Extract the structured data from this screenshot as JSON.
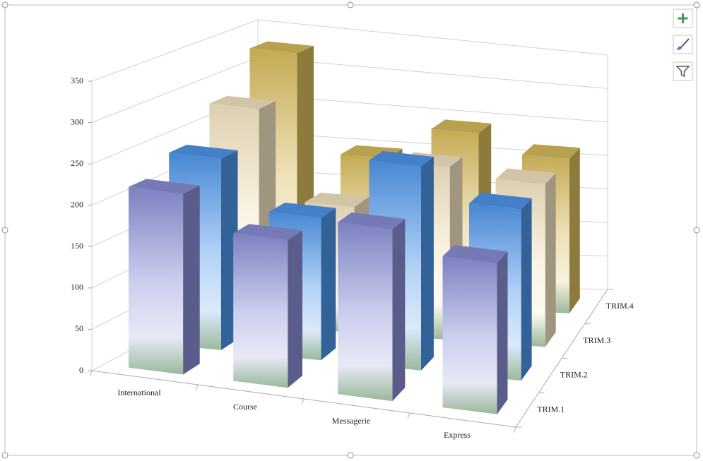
{
  "chart_data": {
    "type": "bar3d",
    "categories": [
      "International",
      "Course",
      "Messagerie",
      "Express"
    ],
    "series": [
      {
        "name": "TRIM.1",
        "color": "#8a8fd6",
        "values": [
          220,
          180,
          210,
          185
        ]
      },
      {
        "name": "TRIM.2",
        "color": "#4f96ea",
        "values": [
          240,
          180,
          260,
          220
        ]
      },
      {
        "name": "TRIM.3",
        "color": "#f6e6c4",
        "values": [
          280,
          165,
          230,
          220
        ]
      },
      {
        "name": "TRIM.4",
        "color": "#d9bd5c",
        "values": [
          330,
          200,
          245,
          220
        ]
      }
    ],
    "ylim": [
      0,
      350
    ],
    "yticks": [
      0,
      50,
      100,
      150,
      200,
      250,
      300,
      350
    ],
    "grid": true
  }
}
